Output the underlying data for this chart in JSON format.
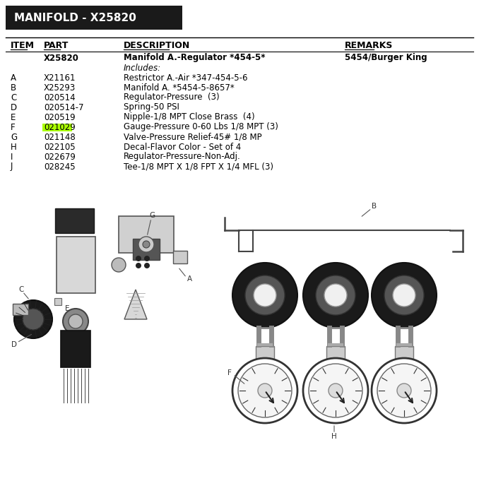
{
  "title": "MANIFOLD - X25820",
  "title_bg": "#1a1a1a",
  "title_color": "#ffffff",
  "header_row": [
    "ITEM",
    "PART",
    "DESCRIPTION",
    "REMARKS"
  ],
  "main_part": {
    "item": "",
    "part": "X25820",
    "description": "Manifold A.-Regulator *454-5*",
    "remarks": "5454/Burger King"
  },
  "includes_label": "Includes:",
  "rows": [
    {
      "item": "A",
      "part": "X21161",
      "description": "Restrictor A.-Air *347-454-5-6",
      "highlight": false
    },
    {
      "item": "B",
      "part": "X25293",
      "description": "Manifold A. *5454-5-8657*",
      "highlight": false
    },
    {
      "item": "C",
      "part": "020514",
      "description": "Regulator-Pressure  (3)",
      "highlight": false
    },
    {
      "item": "D",
      "part": "020514-7",
      "description": "Spring-50 PSI",
      "highlight": false
    },
    {
      "item": "E",
      "part": "020519",
      "description": "Nipple-1/8 MPT Close Brass  (4)",
      "highlight": false
    },
    {
      "item": "F",
      "part": "021029",
      "description": "Gauge-Pressure 0-60 Lbs 1/8 MPT (3)",
      "highlight": true
    },
    {
      "item": "G",
      "part": "021148",
      "description": "Valve-Pressure Relief-45# 1/8 MP",
      "highlight": false
    },
    {
      "item": "H",
      "part": "022105",
      "description": "Decal-Flavor Color - Set of 4",
      "highlight": false
    },
    {
      "item": "I",
      "part": "022679",
      "description": "Regulator-Pressure-Non-Adj.",
      "highlight": false
    },
    {
      "item": "J",
      "part": "028245",
      "description": "Tee-1/8 MPT X 1/8 FPT X 1/4 MFL (3)",
      "highlight": false
    }
  ],
  "highlight_color": "#aaff00",
  "figure_bg": "#ffffff",
  "text_color": "#000000",
  "font_size_title": 11,
  "font_size_header": 9,
  "font_size_body": 8.5
}
